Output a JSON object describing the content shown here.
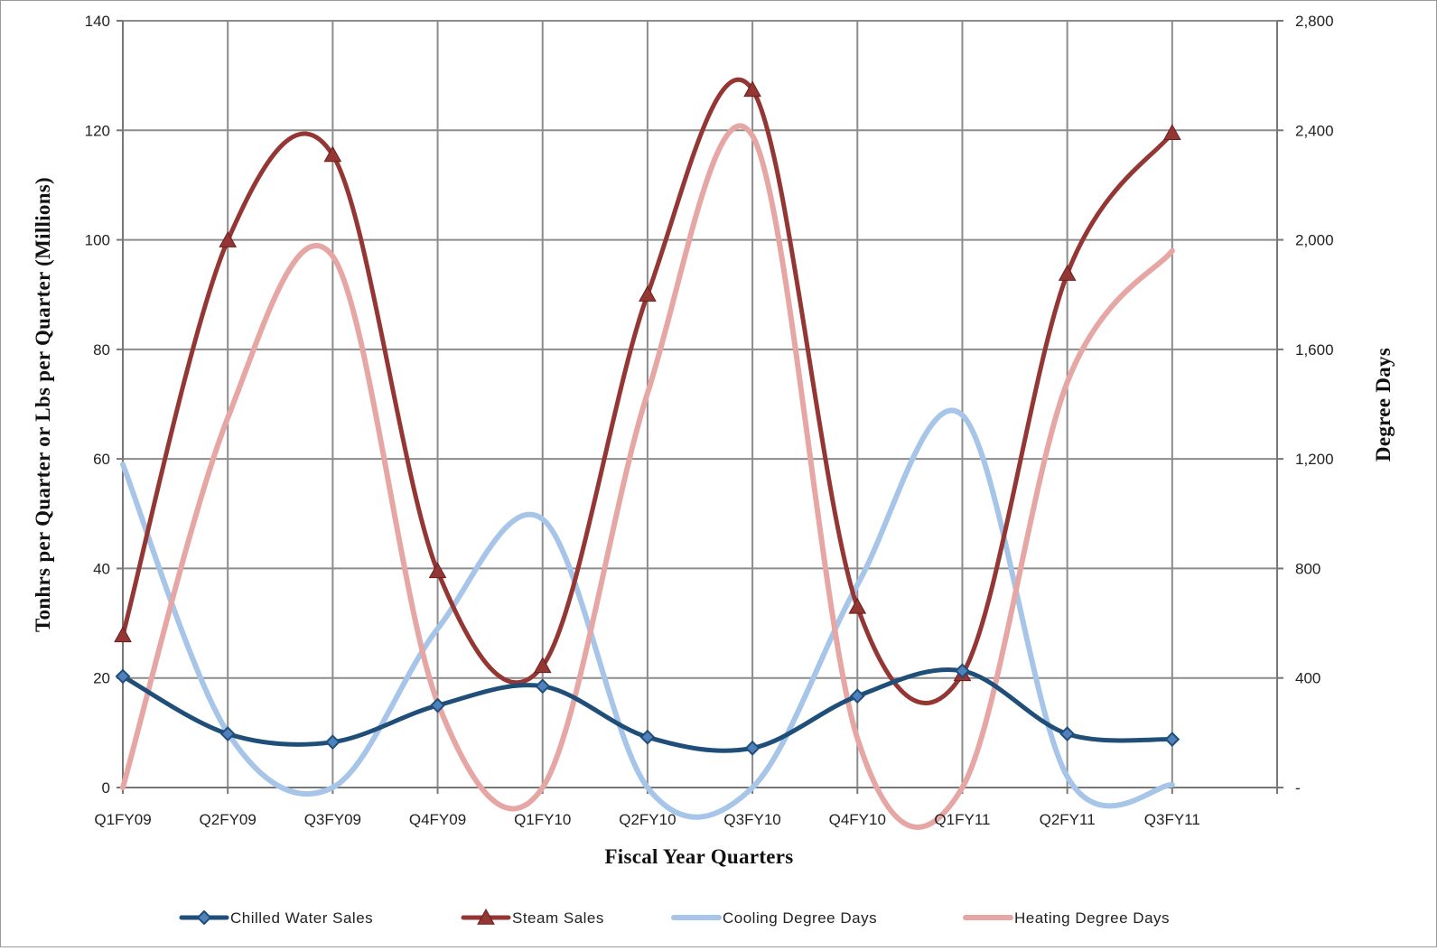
{
  "chart_data": {
    "type": "line",
    "xlabel": "Fiscal Year Quarters",
    "ylabel_left": "Tonhrs per Quarter or Lbs per Quarter (Millions)",
    "ylabel_right": "Degree Days",
    "categories": [
      "Q1FY09",
      "Q2FY09",
      "Q3FY09",
      "Q4FY09",
      "Q1FY10",
      "Q2FY10",
      "Q3FY10",
      "Q4FY10",
      "Q1FY11",
      "Q2FY11",
      "Q3FY11"
    ],
    "ylim_left": [
      0,
      140
    ],
    "ylim_right": [
      0,
      2800
    ],
    "yticks_left": [
      "0",
      "20",
      "40",
      "60",
      "80",
      "100",
      "120",
      "140"
    ],
    "yticks_right": [
      "-",
      "400",
      "800",
      "1,200",
      "1,600",
      "2,000",
      "2,400",
      "2,800"
    ],
    "grid": true,
    "smoothed": true,
    "legend_position": "bottom",
    "series": [
      {
        "name": "Chilled Water Sales",
        "axis": "left",
        "color": "#1f4e79",
        "marker": "diamond",
        "values": [
          20.3,
          9.8,
          8.3,
          15.0,
          18.5,
          9.2,
          7.2,
          16.7,
          21.3,
          9.8,
          8.8
        ]
      },
      {
        "name": "Steam Sales",
        "axis": "left",
        "color": "#943634",
        "marker": "triangle",
        "values": [
          27.8,
          99.9,
          115.5,
          39.5,
          22.2,
          90.0,
          127.4,
          33.0,
          20.7,
          93.8,
          119.5
        ]
      },
      {
        "name": "Cooling Degree Days",
        "axis": "right",
        "color": "#a6c5e8",
        "marker": "none",
        "values": [
          1180,
          200,
          0,
          580,
          980,
          0,
          0,
          740,
          1360,
          40,
          10
        ]
      },
      {
        "name": "Heating Degree Days",
        "axis": "right",
        "color": "#e6a6a4",
        "marker": "none",
        "values": [
          0,
          1350,
          1940,
          310,
          0,
          1440,
          2380,
          180,
          0,
          1480,
          1960
        ]
      }
    ]
  }
}
